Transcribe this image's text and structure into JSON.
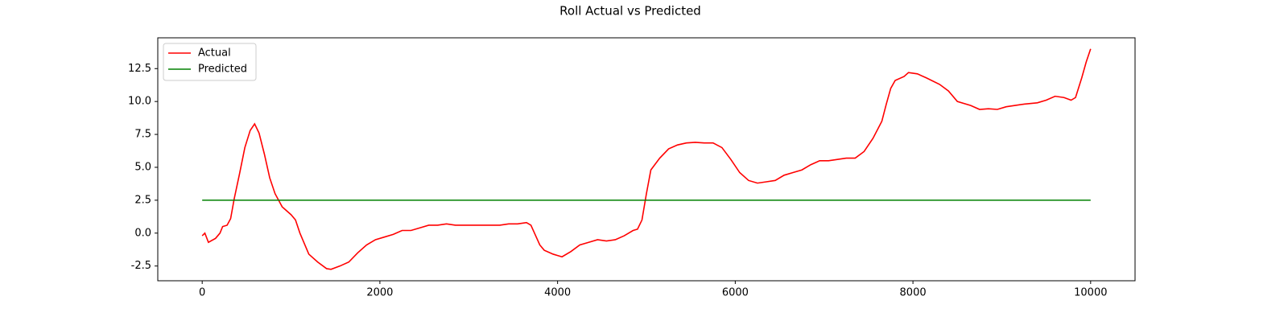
{
  "chart_data": {
    "type": "line",
    "title": "Roll Actual vs Predicted",
    "series": [
      {
        "name": "Actual",
        "color": "#ff0000",
        "x": [
          0,
          30,
          70,
          150,
          200,
          230,
          280,
          320,
          360,
          420,
          480,
          540,
          590,
          640,
          700,
          760,
          820,
          900,
          1000,
          1050,
          1100,
          1200,
          1300,
          1400,
          1450,
          1550,
          1650,
          1750,
          1850,
          1950,
          2050,
          2150,
          2250,
          2350,
          2450,
          2550,
          2650,
          2750,
          2850,
          3000,
          3200,
          3350,
          3450,
          3550,
          3650,
          3700,
          3800,
          3850,
          3950,
          4000,
          4050,
          4150,
          4250,
          4350,
          4450,
          4550,
          4650,
          4750,
          4850,
          4900,
          4950,
          5000,
          5050,
          5150,
          5250,
          5350,
          5450,
          5550,
          5650,
          5750,
          5850,
          5950,
          6050,
          6150,
          6250,
          6350,
          6450,
          6550,
          6650,
          6750,
          6850,
          6950,
          7050,
          7150,
          7250,
          7350,
          7450,
          7550,
          7650,
          7700,
          7750,
          7800,
          7900,
          7950,
          8050,
          8150,
          8300,
          8400,
          8500,
          8650,
          8750,
          8850,
          8950,
          9050,
          9150,
          9250,
          9400,
          9500,
          9600,
          9700,
          9780,
          9830,
          9900,
          9950,
          10000
        ],
        "values": [
          -0.2,
          0.0,
          -0.7,
          -0.4,
          0.0,
          0.5,
          0.6,
          1.1,
          2.6,
          4.5,
          6.5,
          7.8,
          8.3,
          7.6,
          6.0,
          4.2,
          3.0,
          2.0,
          1.4,
          1.0,
          0.0,
          -1.6,
          -2.2,
          -2.7,
          -2.75,
          -2.5,
          -2.2,
          -1.5,
          -0.9,
          -0.5,
          -0.3,
          -0.1,
          0.2,
          0.2,
          0.4,
          0.6,
          0.6,
          0.7,
          0.6,
          0.6,
          0.6,
          0.6,
          0.7,
          0.7,
          0.8,
          0.6,
          -0.9,
          -1.3,
          -1.6,
          -1.7,
          -1.8,
          -1.4,
          -0.9,
          -0.7,
          -0.5,
          -0.6,
          -0.5,
          -0.2,
          0.2,
          0.3,
          1.0,
          3.0,
          4.8,
          5.7,
          6.4,
          6.7,
          6.85,
          6.9,
          6.85,
          6.85,
          6.5,
          5.6,
          4.6,
          4.0,
          3.8,
          3.9,
          4.0,
          4.4,
          4.6,
          4.8,
          5.2,
          5.5,
          5.5,
          5.6,
          5.7,
          5.7,
          6.2,
          7.2,
          8.5,
          9.8,
          11.0,
          11.6,
          11.9,
          12.2,
          12.1,
          11.8,
          11.3,
          10.8,
          10.0,
          9.7,
          9.4,
          9.45,
          9.4,
          9.6,
          9.7,
          9.8,
          9.9,
          10.1,
          10.4,
          10.3,
          10.1,
          10.3,
          11.8,
          13.0,
          14.0
        ]
      },
      {
        "name": "Predicted",
        "color": "#008000",
        "x": [
          0,
          10000
        ],
        "values": [
          2.5,
          2.5
        ]
      }
    ],
    "xlim": [
      -500,
      10500
    ],
    "xticks": [
      0,
      2000,
      4000,
      6000,
      8000,
      10000
    ],
    "ylim": [
      -3.62,
      14.84
    ],
    "yticks": [
      -2.5,
      {
        "value": 0,
        "label": "0.0"
      },
      2.5,
      {
        "value": 5,
        "label": "5.0"
      },
      7.5,
      {
        "value": 10,
        "label": "10.0"
      },
      12.5
    ],
    "legend": "upper left"
  }
}
